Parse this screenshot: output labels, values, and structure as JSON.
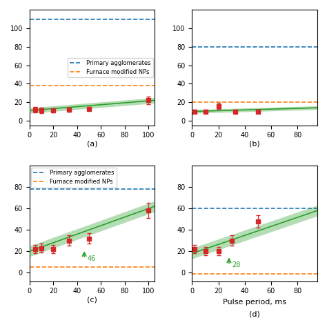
{
  "chart_data": [
    {
      "type": "errorbar",
      "title": "(a)",
      "xlim": [
        0,
        105
      ],
      "ylim": [
        -5,
        120
      ],
      "xticks": [
        0,
        20,
        40,
        60,
        80,
        100
      ],
      "yticks": [
        0,
        20,
        40,
        60,
        80,
        100
      ],
      "legend": "center right",
      "series": [
        {
          "name": "Primary agglomerates",
          "type": "hline",
          "y": 110,
          "line_style": "dashed"
        },
        {
          "name": "Furnace modified NPs",
          "type": "hline",
          "y": 38,
          "line_style": "dashed"
        },
        {
          "type": "band",
          "x": [
            0,
            105
          ],
          "lower": [
            8,
            19
          ],
          "upper": [
            14,
            25
          ]
        },
        {
          "type": "line",
          "x": [
            0,
            105
          ],
          "values": [
            11,
            22
          ],
          "line_style": "solid"
        },
        {
          "type": "scatter",
          "marker": "square",
          "x": [
            5,
            10,
            20,
            33,
            50,
            100
          ],
          "values": [
            12,
            11,
            11,
            12,
            13,
            22
          ],
          "errors": [
            3,
            3,
            2,
            2,
            2,
            4
          ]
        }
      ]
    },
    {
      "type": "errorbar",
      "title": "(b)",
      "xlim": [
        0,
        95
      ],
      "ylim": [
        -5,
        120
      ],
      "xticks": [
        0,
        20,
        40,
        60,
        80
      ],
      "yticks": [
        0,
        20,
        40,
        60,
        80,
        100
      ],
      "series": [
        {
          "type": "hline",
          "y": 80,
          "line_style": "dashed"
        },
        {
          "type": "hline",
          "y": 20,
          "line_style": "dashed"
        },
        {
          "type": "band",
          "x": [
            0,
            95
          ],
          "lower": [
            8,
            12
          ],
          "upper": [
            12,
            16
          ]
        },
        {
          "type": "line",
          "x": [
            0,
            95
          ],
          "values": [
            10,
            14
          ],
          "line_style": "solid"
        },
        {
          "type": "scatter",
          "marker": "square",
          "x": [
            2,
            10,
            20,
            33,
            50
          ],
          "values": [
            10,
            10,
            16,
            10,
            10
          ],
          "errors": [
            2,
            2,
            3,
            2,
            2
          ]
        }
      ]
    },
    {
      "type": "errorbar",
      "title": "(c)",
      "xlim": [
        0,
        105
      ],
      "ylim": [
        -8,
        100
      ],
      "xticks": [
        0,
        20,
        40,
        60,
        80,
        100
      ],
      "yticks": [
        0,
        20,
        40,
        60,
        80
      ],
      "legend": "upper left",
      "series": [
        {
          "name": "Primary agglomerates",
          "type": "hline",
          "y": 78,
          "line_style": "dashed"
        },
        {
          "name": "Furnace modified NPs",
          "type": "hline",
          "y": 5,
          "line_style": "dashed"
        },
        {
          "type": "band",
          "x": [
            0,
            105
          ],
          "lower": [
            15,
            57
          ],
          "upper": [
            25,
            67
          ]
        },
        {
          "type": "line",
          "x": [
            0,
            105
          ],
          "values": [
            20,
            62
          ],
          "line_style": "solid"
        },
        {
          "type": "scatter",
          "marker": "square",
          "x": [
            5,
            10,
            20,
            33,
            50,
            100
          ],
          "values": [
            22,
            23,
            22,
            30,
            32,
            58
          ],
          "errors": [
            4,
            4,
            4,
            5,
            5,
            7
          ]
        }
      ],
      "annotations": [
        {
          "text": "46",
          "x": 46,
          "y": 13,
          "arrow_to_y": 22
        }
      ]
    },
    {
      "type": "errorbar",
      "title": "(d)",
      "x_label": "Pulse period, ms",
      "xlim": [
        0,
        95
      ],
      "ylim": [
        -8,
        100
      ],
      "xticks": [
        0,
        20,
        40,
        60,
        80
      ],
      "yticks": [
        0,
        20,
        40,
        60,
        80
      ],
      "series": [
        {
          "type": "hline",
          "y": 60,
          "line_style": "dashed"
        },
        {
          "type": "hline",
          "y": -1,
          "line_style": "dashed"
        },
        {
          "type": "band",
          "x": [
            0,
            95
          ],
          "lower": [
            13,
            53
          ],
          "upper": [
            23,
            63
          ]
        },
        {
          "type": "line",
          "x": [
            0,
            95
          ],
          "values": [
            18,
            58
          ],
          "line_style": "solid"
        },
        {
          "type": "scatter",
          "marker": "square",
          "x": [
            2,
            10,
            20,
            30,
            50
          ],
          "values": [
            22,
            20,
            20,
            30,
            48
          ],
          "errors": [
            4,
            4,
            4,
            5,
            6
          ]
        }
      ],
      "annotations": [
        {
          "text": "28",
          "x": 28,
          "y": 7,
          "arrow_to_y": 16
        }
      ]
    }
  ]
}
